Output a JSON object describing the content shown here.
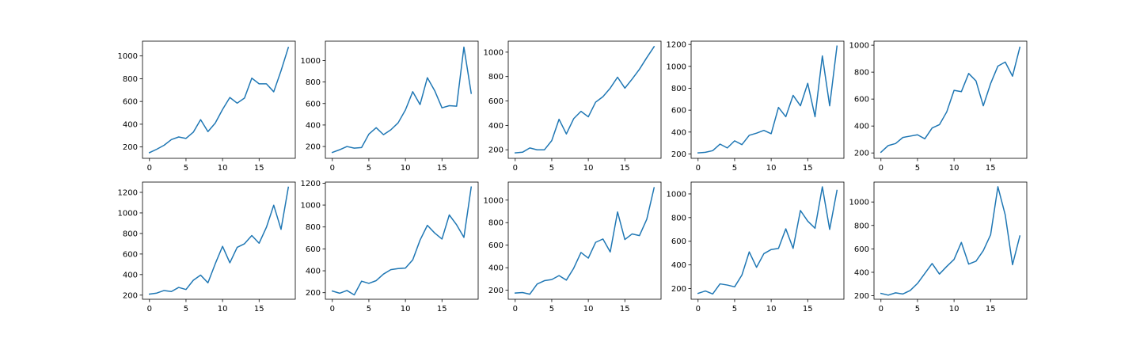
{
  "figure": {
    "background": "#ffffff",
    "line_color": "#1f77b4",
    "grid": false,
    "rows": 2,
    "cols": 5
  },
  "chart_data": [
    {
      "type": "line",
      "x": [
        0,
        1,
        2,
        3,
        4,
        5,
        6,
        7,
        8,
        9,
        10,
        11,
        12,
        13,
        14,
        15,
        16,
        17,
        18,
        19
      ],
      "xlim": [
        -0.95,
        19.95
      ],
      "ylim": [
        100,
        1130
      ],
      "xticks": [
        0,
        5,
        10,
        15
      ],
      "yticks": [
        200,
        400,
        600,
        800,
        1000
      ],
      "series": [
        {
          "values": [
            150,
            180,
            215,
            265,
            288,
            275,
            330,
            440,
            335,
            410,
            530,
            635,
            585,
            630,
            805,
            755,
            755,
            685,
            870,
            1075
          ]
        }
      ]
    },
    {
      "type": "line",
      "x": [
        0,
        1,
        2,
        3,
        4,
        5,
        6,
        7,
        8,
        9,
        10,
        11,
        12,
        13,
        14,
        15,
        16,
        17,
        18,
        19
      ],
      "xlim": [
        -0.95,
        19.95
      ],
      "ylim": [
        90,
        1180
      ],
      "xticks": [
        0,
        5,
        10,
        15
      ],
      "yticks": [
        200,
        400,
        600,
        800,
        1000
      ],
      "series": [
        {
          "values": [
            145,
            170,
            200,
            185,
            190,
            315,
            375,
            310,
            355,
            420,
            540,
            710,
            590,
            840,
            720,
            560,
            580,
            575,
            1125,
            695
          ]
        }
      ]
    },
    {
      "type": "line",
      "x": [
        0,
        1,
        2,
        3,
        4,
        5,
        6,
        7,
        8,
        9,
        10,
        11,
        12,
        13,
        14,
        15,
        16,
        17,
        18,
        19
      ],
      "xlim": [
        -0.95,
        19.95
      ],
      "ylim": [
        130,
        1090
      ],
      "xticks": [
        0,
        5,
        10,
        15
      ],
      "yticks": [
        200,
        400,
        600,
        800,
        1000
      ],
      "series": [
        {
          "values": [
            175,
            180,
            215,
            200,
            200,
            275,
            450,
            330,
            455,
            515,
            470,
            590,
            635,
            705,
            795,
            705,
            780,
            860,
            955,
            1045
          ]
        }
      ]
    },
    {
      "type": "line",
      "x": [
        0,
        1,
        2,
        3,
        4,
        5,
        6,
        7,
        8,
        9,
        10,
        11,
        12,
        13,
        14,
        15,
        16,
        17,
        18,
        19
      ],
      "xlim": [
        -0.95,
        19.95
      ],
      "ylim": [
        160,
        1230
      ],
      "xticks": [
        0,
        5,
        10,
        15
      ],
      "yticks": [
        200,
        400,
        600,
        800,
        1000,
        1200
      ],
      "series": [
        {
          "values": [
            210,
            215,
            230,
            290,
            255,
            320,
            285,
            370,
            390,
            415,
            385,
            625,
            540,
            735,
            640,
            845,
            540,
            1095,
            640,
            1185
          ]
        }
      ]
    },
    {
      "type": "line",
      "x": [
        0,
        1,
        2,
        3,
        4,
        5,
        6,
        7,
        8,
        9,
        10,
        11,
        12,
        13,
        14,
        15,
        16,
        17,
        18,
        19
      ],
      "xlim": [
        -0.95,
        19.95
      ],
      "ylim": [
        160,
        1030
      ],
      "xticks": [
        0,
        5,
        10,
        15
      ],
      "yticks": [
        200,
        400,
        600,
        800,
        1000
      ],
      "series": [
        {
          "values": [
            205,
            255,
            270,
            315,
            325,
            335,
            305,
            385,
            410,
            505,
            665,
            655,
            790,
            735,
            550,
            715,
            845,
            875,
            770,
            985
          ]
        }
      ]
    },
    {
      "type": "line",
      "x": [
        0,
        1,
        2,
        3,
        4,
        5,
        6,
        7,
        8,
        9,
        10,
        11,
        12,
        13,
        14,
        15,
        16,
        17,
        18,
        19
      ],
      "xlim": [
        -0.95,
        19.95
      ],
      "ylim": [
        160,
        1300
      ],
      "xticks": [
        0,
        5,
        10,
        15
      ],
      "yticks": [
        200,
        400,
        600,
        800,
        1000,
        1200
      ],
      "series": [
        {
          "values": [
            210,
            220,
            245,
            235,
            275,
            255,
            345,
            395,
            320,
            505,
            675,
            515,
            665,
            700,
            780,
            705,
            860,
            1075,
            840,
            1250
          ]
        }
      ]
    },
    {
      "type": "line",
      "x": [
        0,
        1,
        2,
        3,
        4,
        5,
        6,
        7,
        8,
        9,
        10,
        11,
        12,
        13,
        14,
        15,
        16,
        17,
        18,
        19
      ],
      "xlim": [
        -0.95,
        19.95
      ],
      "ylim": [
        140,
        1210
      ],
      "xticks": [
        0,
        5,
        10,
        15
      ],
      "yticks": [
        200,
        400,
        600,
        800,
        1000,
        1200
      ],
      "series": [
        {
          "values": [
            215,
            195,
            220,
            180,
            305,
            285,
            310,
            370,
            410,
            420,
            425,
            500,
            680,
            815,
            745,
            690,
            910,
            820,
            705,
            1165
          ]
        }
      ]
    },
    {
      "type": "line",
      "x": [
        0,
        1,
        2,
        3,
        4,
        5,
        6,
        7,
        8,
        9,
        10,
        11,
        12,
        13,
        14,
        15,
        16,
        17,
        18,
        19
      ],
      "xlim": [
        -0.95,
        19.95
      ],
      "ylim": [
        120,
        1160
      ],
      "xticks": [
        0,
        5,
        10,
        15
      ],
      "yticks": [
        200,
        400,
        600,
        800,
        1000
      ],
      "series": [
        {
          "values": [
            175,
            180,
            165,
            255,
            285,
            295,
            330,
            290,
            395,
            535,
            485,
            625,
            655,
            540,
            895,
            650,
            700,
            685,
            830,
            1110
          ]
        }
      ]
    },
    {
      "type": "line",
      "x": [
        0,
        1,
        2,
        3,
        4,
        5,
        6,
        7,
        8,
        9,
        10,
        11,
        12,
        13,
        14,
        15,
        16,
        17,
        18,
        19
      ],
      "xlim": [
        -0.95,
        19.95
      ],
      "ylim": [
        110,
        1100
      ],
      "xticks": [
        0,
        5,
        10,
        15
      ],
      "yticks": [
        200,
        400,
        600,
        800,
        1000
      ],
      "series": [
        {
          "values": [
            160,
            180,
            155,
            240,
            230,
            215,
            315,
            510,
            380,
            495,
            530,
            540,
            705,
            540,
            860,
            770,
            710,
            1060,
            700,
            1030
          ]
        }
      ]
    },
    {
      "type": "line",
      "x": [
        0,
        1,
        2,
        3,
        4,
        5,
        6,
        7,
        8,
        9,
        10,
        11,
        12,
        13,
        14,
        15,
        16,
        17,
        18,
        19
      ],
      "xlim": [
        -0.95,
        19.95
      ],
      "ylim": [
        170,
        1170
      ],
      "xticks": [
        0,
        5,
        10,
        15
      ],
      "yticks": [
        200,
        400,
        600,
        800,
        1000
      ],
      "series": [
        {
          "values": [
            220,
            205,
            225,
            215,
            245,
            305,
            390,
            475,
            385,
            450,
            510,
            655,
            470,
            495,
            585,
            720,
            1130,
            890,
            465,
            710
          ]
        }
      ]
    }
  ]
}
